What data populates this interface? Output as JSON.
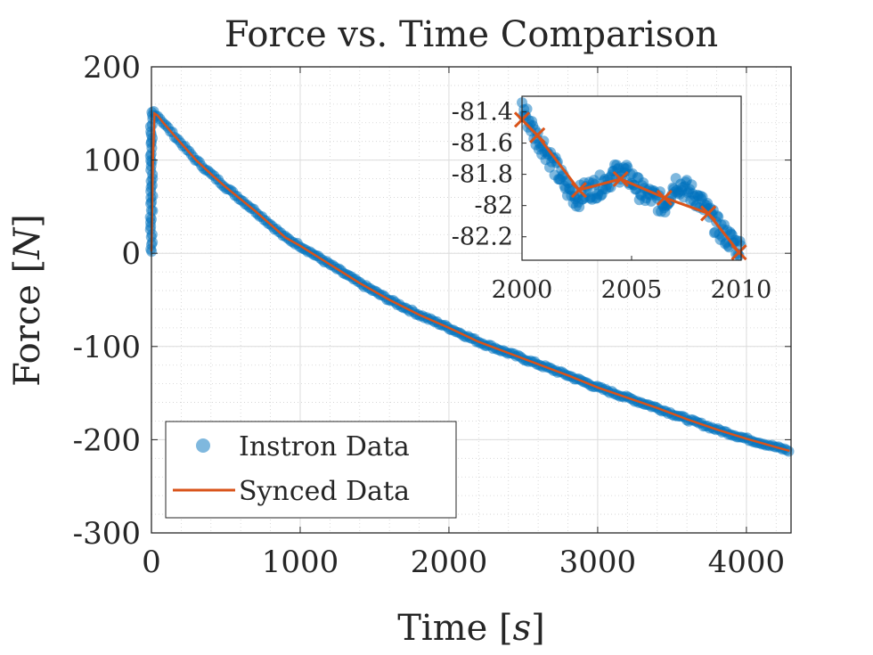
{
  "chart_data": [
    {
      "type": "scatter",
      "title": "Force vs. Time Comparison",
      "xlabel": {
        "text": "Time [",
        "var": "s",
        "close": "]"
      },
      "ylabel": {
        "text": "Force [",
        "var": "N",
        "close": "]"
      },
      "xlim": [
        0,
        4300
      ],
      "ylim": [
        -300,
        200
      ],
      "xticks": [
        0,
        1000,
        2000,
        3000,
        4000
      ],
      "xtick_labels": [
        "0",
        "1000",
        "2000",
        "3000",
        "4000"
      ],
      "yticks": [
        200,
        100,
        0,
        -100,
        -200,
        -300
      ],
      "ytick_labels": [
        "200",
        "100",
        "0",
        "-100",
        "-200",
        "-300"
      ],
      "grid": true,
      "minor_grid": true,
      "legend": "bottom-left",
      "series": [
        {
          "name": "Instron Data",
          "kind": "scatter",
          "color": "#0072BD",
          "x": [
            0,
            3,
            6,
            9,
            12,
            15,
            20,
            40,
            80,
            150,
            200,
            300,
            400,
            500,
            600,
            700,
            800,
            900,
            1000,
            1200,
            1400,
            1600,
            1800,
            2000,
            2200,
            2400,
            2600,
            2800,
            3000,
            3200,
            3400,
            3600,
            3800,
            4000,
            4200,
            4290
          ],
          "y": [
            2,
            10,
            60,
            110,
            140,
            152,
            150,
            148,
            140,
            127,
            118,
            100,
            85,
            71,
            58,
            45,
            31,
            17,
            8,
            -12,
            -32,
            -50,
            -66,
            -80,
            -95,
            -107,
            -119,
            -131,
            -144,
            -155,
            -166,
            -178,
            -189,
            -199,
            -208,
            -212
          ]
        },
        {
          "name": "Synced Data",
          "kind": "line",
          "color": "#D95319",
          "x": [
            0,
            10,
            20,
            40,
            80,
            150,
            200,
            300,
            400,
            500,
            600,
            700,
            800,
            900,
            1000,
            1200,
            1400,
            1600,
            1800,
            2000,
            2200,
            2400,
            2600,
            2800,
            3000,
            3200,
            3400,
            3600,
            3800,
            4000,
            4200,
            4290
          ],
          "y": [
            2,
            100,
            150,
            148,
            140,
            127,
            118,
            100,
            85,
            71,
            58,
            45,
            31,
            17,
            8,
            -12,
            -32,
            -50,
            -66,
            -80,
            -95,
            -107,
            -119,
            -131,
            -144,
            -155,
            -166,
            -178,
            -189,
            -199,
            -208,
            -212
          ]
        }
      ]
    },
    {
      "type": "scatter",
      "title": "",
      "xlim": [
        2000,
        2010
      ],
      "ylim": [
        -82.35,
        -81.3
      ],
      "xticks": [
        2000,
        2005,
        2010
      ],
      "xtick_labels": [
        "2000",
        "2005",
        "2010"
      ],
      "yticks": [
        -81.4,
        -81.6,
        -81.8,
        -82,
        -82.2
      ],
      "ytick_labels": [
        "-81.4",
        "-81.6",
        "-81.8",
        "-82",
        "-82.2"
      ],
      "grid": false,
      "series": [
        {
          "name": "Instron Data",
          "kind": "scatter",
          "color": "#0072BD",
          "x": [
            2000,
            2000.3,
            2000.6,
            2001,
            2001.5,
            2002,
            2002.5,
            2003,
            2003.5,
            2004,
            2004.5,
            2005,
            2005.5,
            2006,
            2006.5,
            2007,
            2007.5,
            2008,
            2008.5,
            2009,
            2009.5,
            2010
          ],
          "y": [
            -81.38,
            -81.45,
            -81.55,
            -81.62,
            -81.75,
            -81.88,
            -81.95,
            -81.9,
            -81.88,
            -81.82,
            -81.78,
            -81.83,
            -81.92,
            -81.95,
            -82.0,
            -81.85,
            -81.9,
            -81.95,
            -82.05,
            -82.15,
            -82.22,
            -82.28
          ]
        },
        {
          "name": "Synced Data",
          "kind": "line",
          "color": "#D95319",
          "marker": "x",
          "x": [
            2000,
            2000.7,
            2002.6,
            2004.5,
            2006.5,
            2008.5,
            2009.9
          ],
          "y": [
            -81.45,
            -81.55,
            -81.9,
            -81.83,
            -81.95,
            -82.05,
            -82.3
          ]
        }
      ]
    }
  ]
}
